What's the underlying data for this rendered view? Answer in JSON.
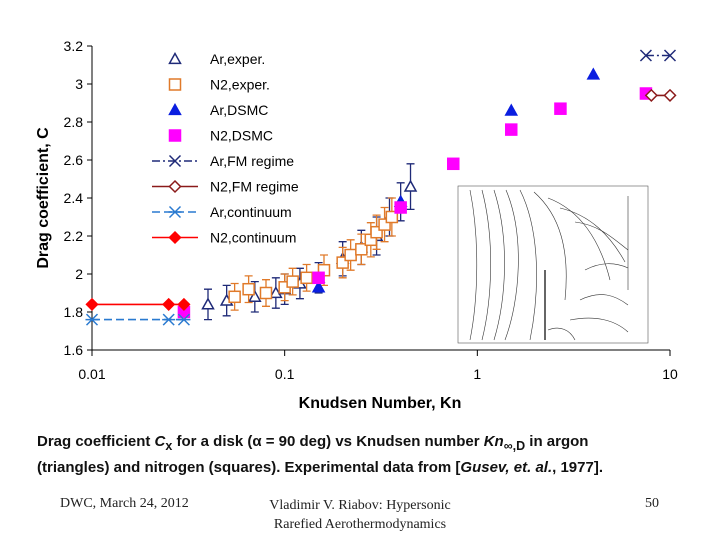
{
  "chart_data": {
    "type": "scatter",
    "xlabel": "Knudsen Number, Kn",
    "ylabel": "Drag coefficient, C",
    "xscale": "log",
    "xlim": [
      0.01,
      10
    ],
    "xticks": [
      0.01,
      0.1,
      1,
      10
    ],
    "ylim": [
      1.6,
      3.2
    ],
    "yticks": [
      1.6,
      1.8,
      2,
      2.2,
      2.4,
      2.6,
      2.8,
      3,
      3.2
    ],
    "series": [
      {
        "name": "Ar,exper.",
        "color": "#1f2a78",
        "marker": "triangle-open",
        "line": "none",
        "x": [
          0.04,
          0.05,
          0.07,
          0.09,
          0.1,
          0.12,
          0.15,
          0.2,
          0.25,
          0.3,
          0.35,
          0.4,
          0.45
        ],
        "values": [
          1.84,
          1.86,
          1.88,
          1.9,
          1.92,
          1.95,
          1.98,
          2.08,
          2.14,
          2.2,
          2.3,
          2.38,
          2.46
        ],
        "errors": [
          0.08,
          0.08,
          0.08,
          0.08,
          0.08,
          0.08,
          0.08,
          0.09,
          0.09,
          0.1,
          0.1,
          0.1,
          0.12
        ]
      },
      {
        "name": "N2,exper.",
        "color": "#e07a2a",
        "marker": "square-open",
        "line": "none",
        "x": [
          0.055,
          0.065,
          0.08,
          0.1,
          0.11,
          0.13,
          0.16,
          0.2,
          0.22,
          0.25,
          0.28,
          0.3,
          0.33,
          0.36
        ],
        "values": [
          1.88,
          1.92,
          1.9,
          1.93,
          1.96,
          1.98,
          2.02,
          2.06,
          2.1,
          2.13,
          2.18,
          2.22,
          2.26,
          2.3
        ],
        "errors": [
          0.07,
          0.07,
          0.07,
          0.07,
          0.07,
          0.07,
          0.08,
          0.08,
          0.08,
          0.08,
          0.09,
          0.09,
          0.09,
          0.1
        ]
      },
      {
        "name": "Ar,DSMC",
        "color": "#0a1ee0",
        "marker": "triangle",
        "line": "none",
        "x": [
          0.15,
          0.4,
          1.5,
          4
        ],
        "values": [
          1.93,
          2.38,
          2.86,
          3.05
        ]
      },
      {
        "name": "N2,DSMC",
        "color": "#ff00ff",
        "marker": "square",
        "line": "none",
        "x": [
          0.03,
          0.15,
          0.4,
          0.75,
          1.5,
          2.7,
          7.5
        ],
        "values": [
          1.8,
          1.98,
          2.35,
          2.58,
          2.76,
          2.87,
          2.95
        ]
      },
      {
        "name": "Ar,FM regime",
        "color": "#1f2a78",
        "marker": "x",
        "line": "dashdot",
        "x": [
          7.5,
          10
        ],
        "values": [
          3.15,
          3.15
        ]
      },
      {
        "name": "N2,FM regime",
        "color": "#8b1a1a",
        "marker": "diamond-open",
        "line": "solid",
        "x": [
          8,
          10
        ],
        "values": [
          2.94,
          2.94
        ]
      },
      {
        "name": "Ar,continuum",
        "color": "#2a7ad0",
        "marker": "asterisk",
        "line": "dashed",
        "x": [
          0.01,
          0.025,
          0.03
        ],
        "values": [
          1.76,
          1.76,
          1.76
        ]
      },
      {
        "name": "N2,continuum",
        "color": "#ff0000",
        "marker": "diamond",
        "line": "solid",
        "x": [
          0.01,
          0.025,
          0.03
        ],
        "values": [
          1.84,
          1.84,
          1.84
        ]
      }
    ]
  },
  "caption": [
    "Drag coefficient ",
    "C",
    "x",
    " for a disk  (α = 90 deg) vs Knudsen number ",
    "Kn",
    "∞,D",
    " in argon",
    "(triangles) and nitrogen (squares). Experimental data from [",
    "Gusev, et. al.",
    ", 1977]."
  ],
  "footer": {
    "left": "DWC, March 24, 2012",
    "center": [
      "Vladimir V. Riabov: Hypersonic",
      "Rarefied Aerothermodynamics"
    ],
    "right": "50"
  }
}
